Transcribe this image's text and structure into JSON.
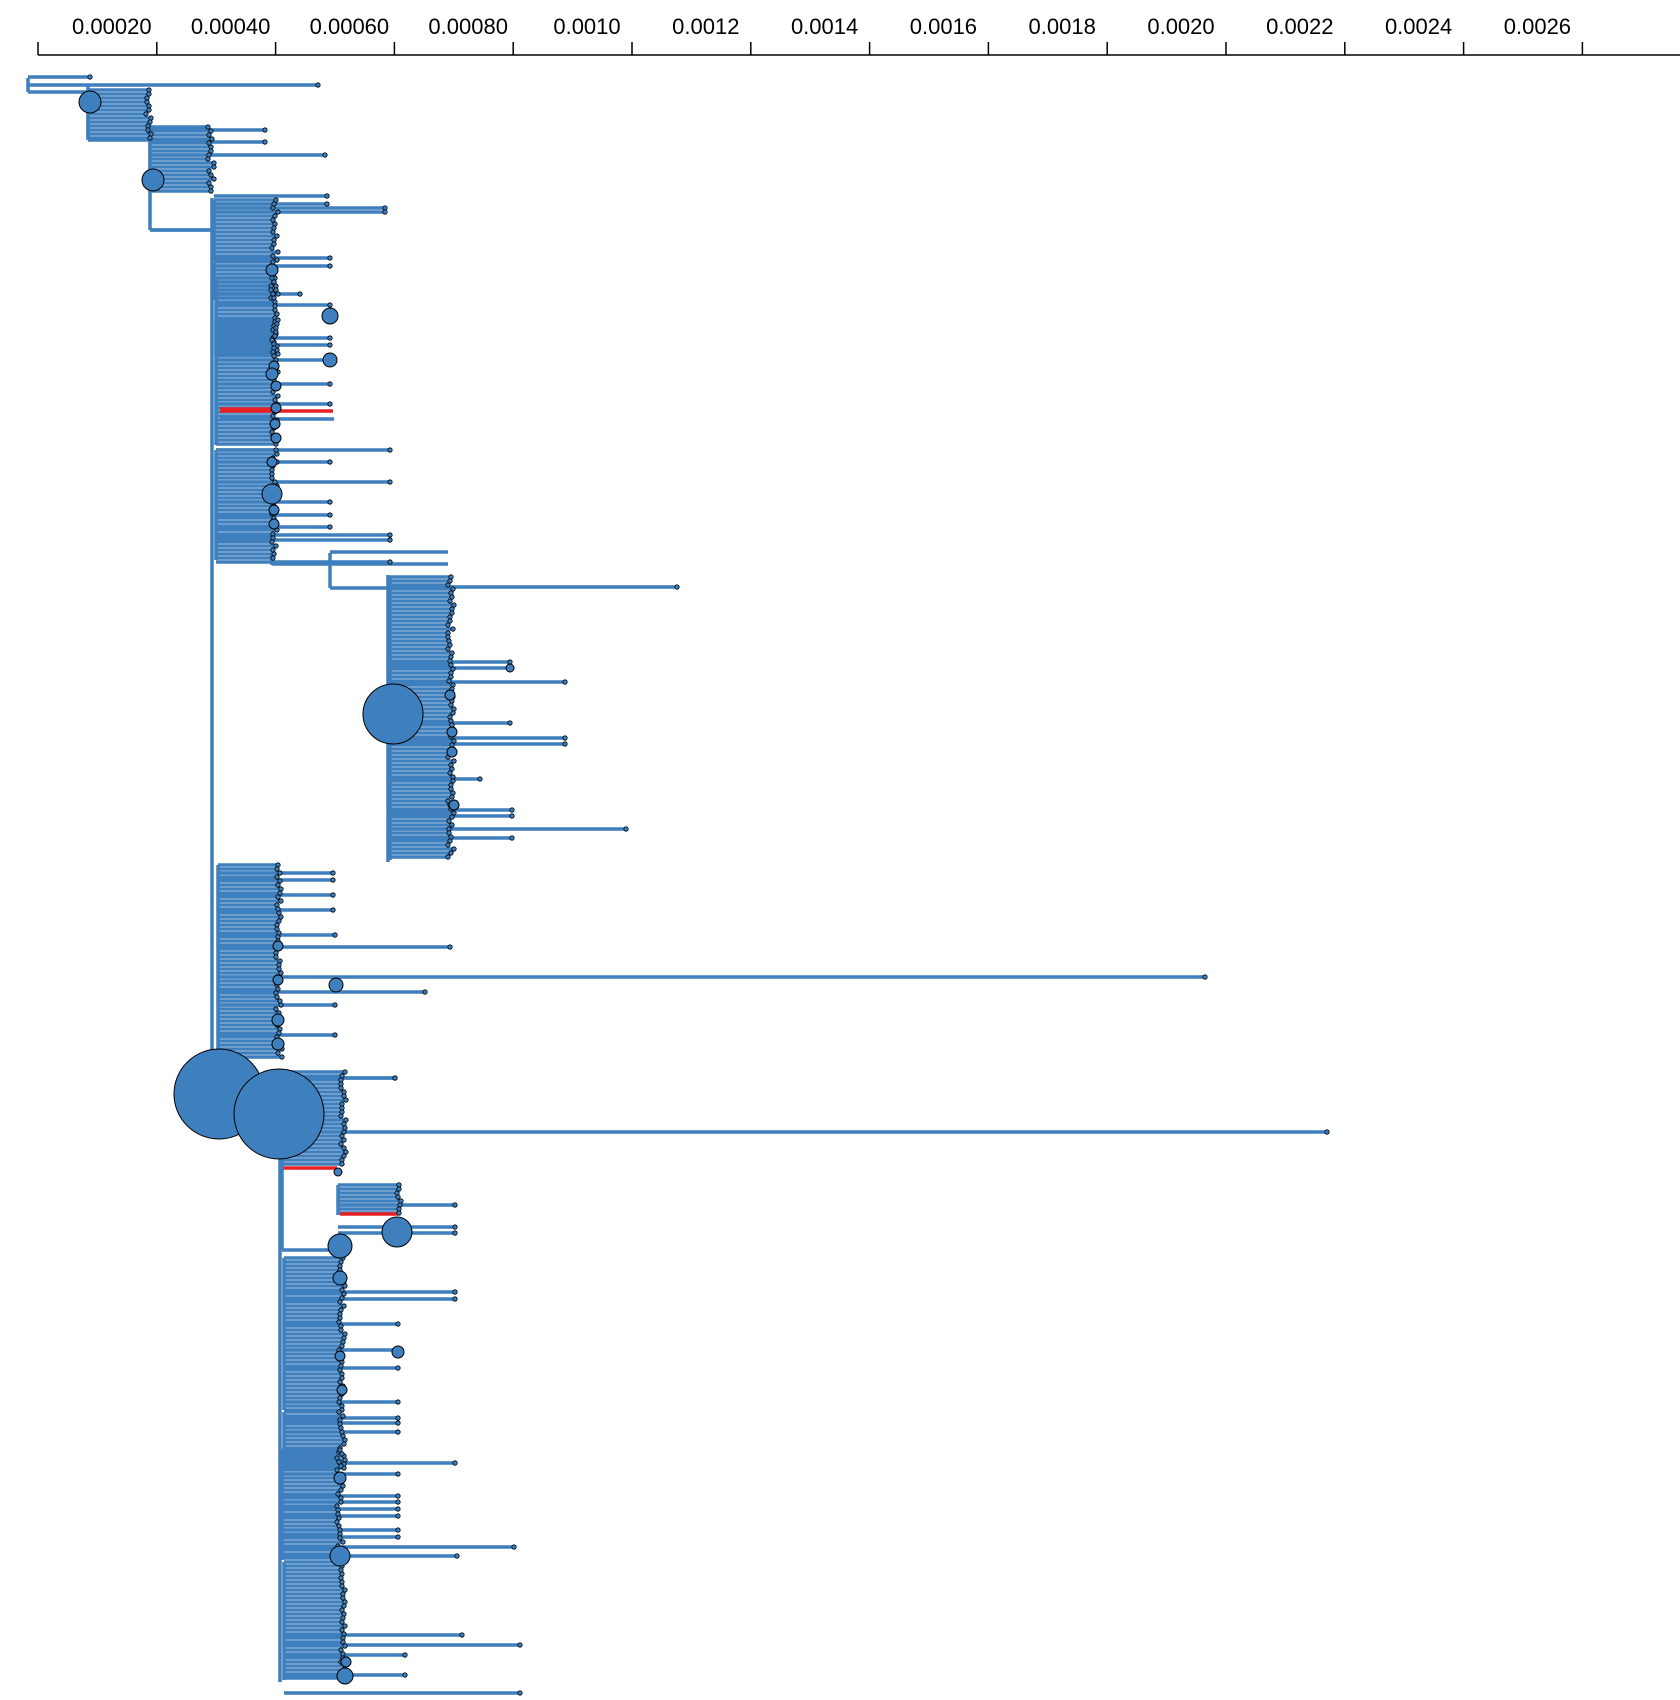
{
  "colors": {
    "branch": "#3e7fbd",
    "highlight": "#e82127",
    "node_fill": "#3e7fbd",
    "axis": "#000000"
  },
  "chart_data": {
    "type": "phylogenetic-tree",
    "axis": {
      "position": "top",
      "ticks": [
        {
          "value": 0.0002,
          "label": "0.00020"
        },
        {
          "value": 0.0004,
          "label": "0.00040"
        },
        {
          "value": 0.0006,
          "label": "0.00060"
        },
        {
          "value": 0.0008,
          "label": "0.00080"
        },
        {
          "value": 0.001,
          "label": "0.0010"
        },
        {
          "value": 0.0012,
          "label": "0.0012"
        },
        {
          "value": 0.0014,
          "label": "0.0014"
        },
        {
          "value": 0.0016,
          "label": "0.0016"
        },
        {
          "value": 0.0018,
          "label": "0.0018"
        },
        {
          "value": 0.002,
          "label": "0.0020"
        },
        {
          "value": 0.0022,
          "label": "0.0022"
        },
        {
          "value": 0.0024,
          "label": "0.0024"
        },
        {
          "value": 0.0026,
          "label": "0.0026"
        }
      ],
      "range": [
        0.0,
        0.0029
      ]
    },
    "highlighted_branches": 4,
    "large_nodes_count": 3
  }
}
